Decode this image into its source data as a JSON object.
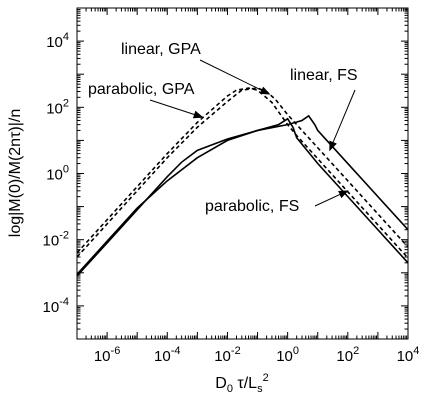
{
  "chart_data": {
    "type": "line",
    "xscale": "log",
    "yscale": "log",
    "xlim": [
      1e-07,
      10000.0
    ],
    "ylim": [
      1e-05,
      100000.0
    ],
    "grid": false,
    "legend": "none",
    "xlabel": "D0 τ/Ls2",
    "ylabel": "log|M(0)/M(2nτ)|/n",
    "x_ticks": [
      {
        "value": 1e-06,
        "base": "10",
        "exp": "-6"
      },
      {
        "value": 0.0001,
        "base": "10",
        "exp": "-4"
      },
      {
        "value": 0.01,
        "base": "10",
        "exp": "-2"
      },
      {
        "value": 1.0,
        "base": "10",
        "exp": "0"
      },
      {
        "value": 100.0,
        "base": "10",
        "exp": "2"
      },
      {
        "value": 10000.0,
        "base": "10",
        "exp": "4"
      }
    ],
    "y_ticks": [
      {
        "value": 0.0001,
        "base": "10",
        "exp": "-4"
      },
      {
        "value": 0.01,
        "base": "10",
        "exp": "-2"
      },
      {
        "value": 1.0,
        "base": "10",
        "exp": "0"
      },
      {
        "value": 100.0,
        "base": "10",
        "exp": "2"
      },
      {
        "value": 10000.0,
        "base": "10",
        "exp": "4"
      }
    ],
    "series": [
      {
        "name": "linear, GPA",
        "style": "dashed",
        "x": [
          1e-07,
          1e-06,
          1e-05,
          0.0001,
          0.001,
          0.01,
          0.03,
          0.1,
          0.2,
          0.4,
          1,
          2,
          5,
          10,
          100,
          1000,
          10000
        ],
        "y": [
          0.003,
          0.03,
          0.3,
          3,
          25,
          150,
          330,
          380,
          300,
          170,
          60,
          30,
          12,
          6,
          0.6,
          0.06,
          0.006
        ]
      },
      {
        "name": "parabolic, GPA",
        "style": "dashed",
        "x": [
          1e-07,
          1e-06,
          1e-05,
          0.0001,
          0.001,
          0.01,
          0.02,
          0.05,
          0.1,
          0.3,
          1,
          2,
          5,
          10,
          100,
          1000,
          10000
        ],
        "y": [
          0.004,
          0.04,
          0.4,
          4,
          35,
          220,
          330,
          380,
          330,
          140,
          30,
          14,
          5.6,
          2.8,
          0.28,
          0.028,
          0.0028
        ]
      },
      {
        "name": "linear, FS",
        "style": "solid",
        "x": [
          1e-07,
          1e-06,
          1e-05,
          0.0001,
          0.001,
          0.01,
          0.1,
          1,
          3,
          5,
          8,
          10,
          100,
          1000,
          10000
        ],
        "y": [
          0.0009,
          0.009,
          0.09,
          0.6,
          3,
          10,
          20,
          30,
          40,
          55,
          30,
          20,
          2,
          0.2,
          0.02
        ]
      },
      {
        "name": "parabolic, FS",
        "style": "solid",
        "x": [
          1e-07,
          1e-06,
          1e-05,
          0.0001,
          0.0003,
          0.001,
          0.01,
          0.1,
          0.5,
          1,
          1.5,
          2,
          10,
          100,
          1000,
          10000
        ],
        "y": [
          0.0008,
          0.008,
          0.08,
          0.8,
          2.2,
          5,
          11,
          20,
          30,
          45,
          25,
          12,
          2,
          0.2,
          0.02,
          0.002
        ]
      }
    ],
    "annotations": [
      {
        "text": "linear, GPA"
      },
      {
        "text": "parabolic, GPA"
      },
      {
        "text": "linear, FS"
      },
      {
        "text": "parabolic, FS"
      }
    ]
  }
}
